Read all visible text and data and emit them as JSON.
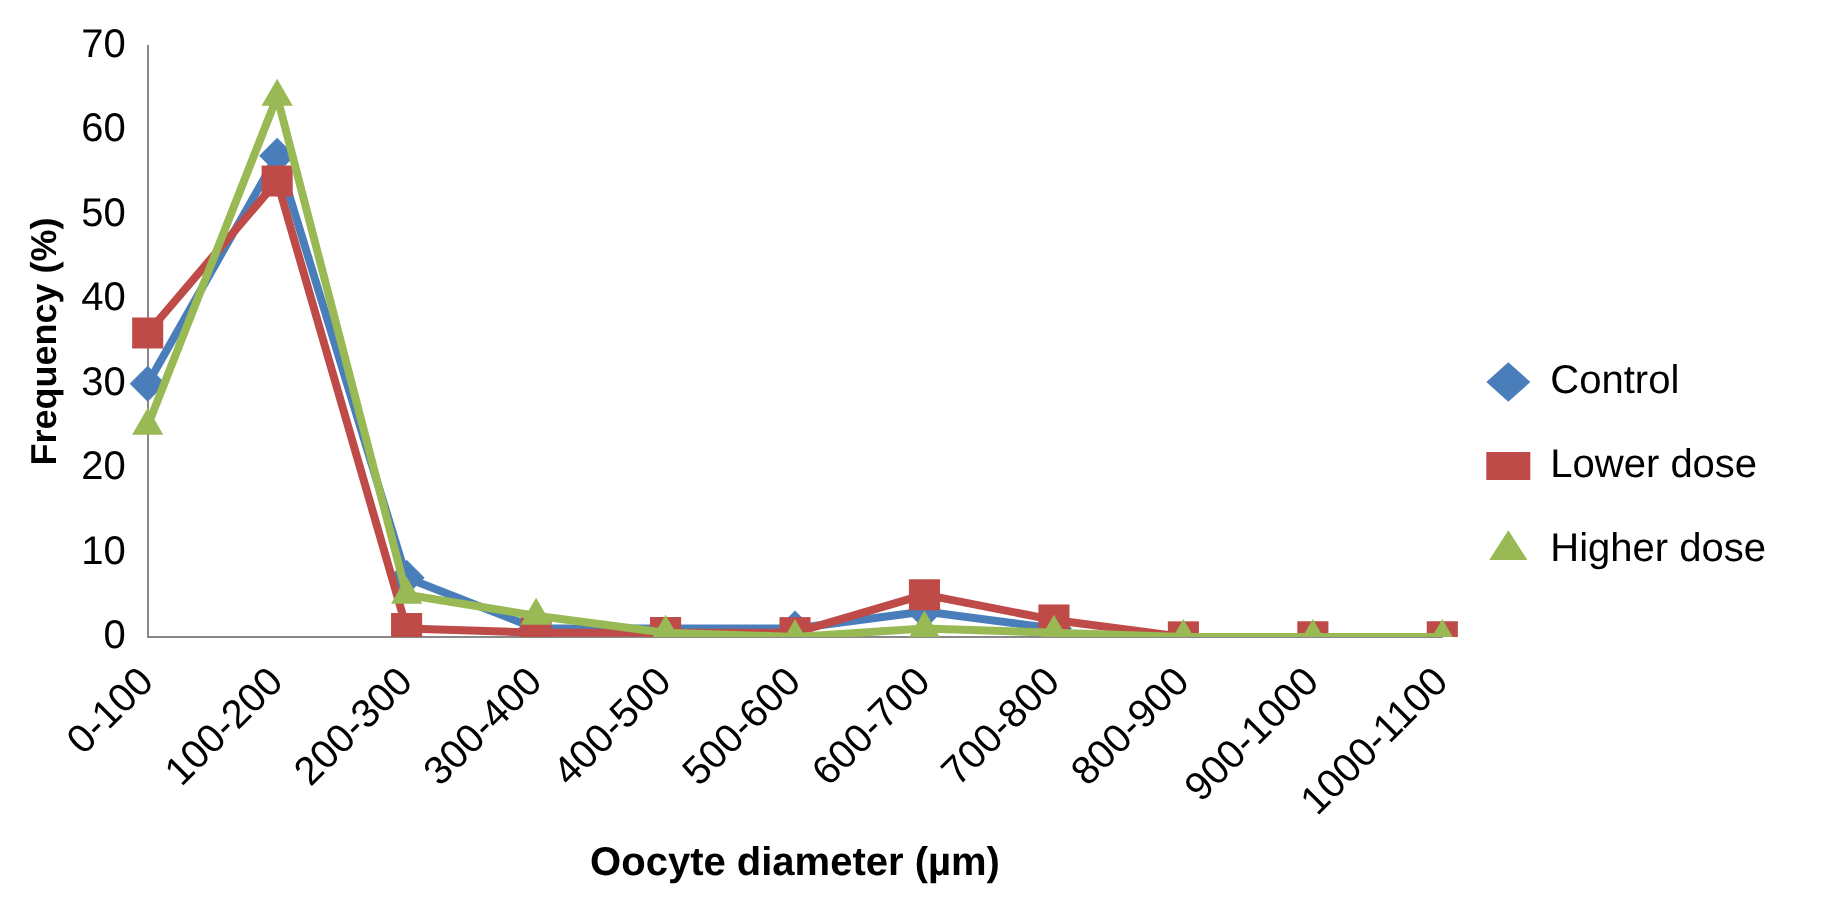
{
  "chart_data": {
    "type": "line",
    "xlabel": "Oocyte diameter (µm)",
    "ylabel": "Frequency (%)",
    "categories": [
      "0-100",
      "100-200",
      "200-300",
      "300-400",
      "400-500",
      "500-600",
      "600-700",
      "700-800",
      "800-900",
      "900-1000",
      "1000-1100"
    ],
    "series": [
      {
        "name": "Control",
        "color": "#4a7ebb",
        "marker": "diamond",
        "values": [
          30,
          57,
          7,
          1,
          null,
          1,
          3,
          1,
          null,
          null,
          null
        ]
      },
      {
        "name": "Lower dose",
        "color": "#be4b48",
        "marker": "square",
        "values": [
          36,
          54,
          1,
          0.5,
          0.5,
          0.5,
          5,
          2,
          0,
          0,
          0
        ]
      },
      {
        "name": "Higher dose",
        "color": "#98b954",
        "marker": "triangle",
        "values": [
          25,
          64,
          5,
          2.5,
          0.5,
          0,
          1,
          0.5,
          0,
          0,
          0
        ]
      }
    ],
    "ylim": [
      0,
      70
    ],
    "yticks": [
      0,
      10,
      20,
      30,
      40,
      50,
      60,
      70
    ],
    "grid": false,
    "legend": "right",
    "line_style": "solid"
  }
}
